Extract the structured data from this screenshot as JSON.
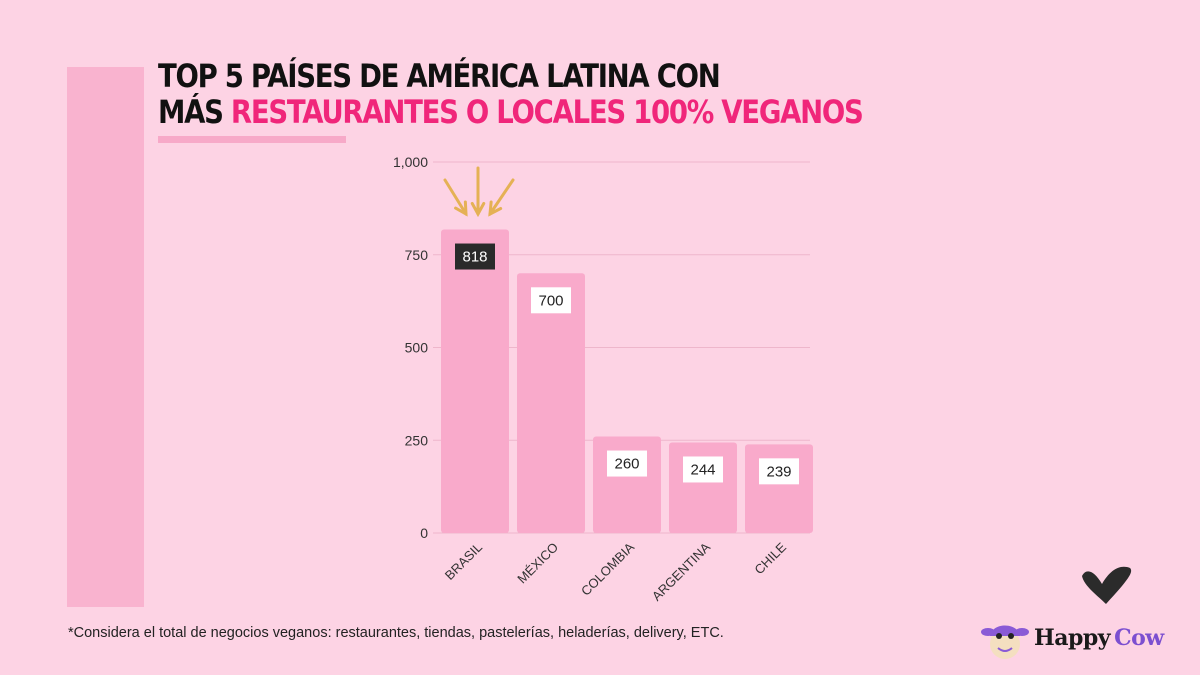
{
  "title": {
    "line1": "TOP 5 PAÍSES DE AMÉRICA LATINA CON",
    "line2_black": "MÁS ",
    "line2_pink": "RESTAURANTES O LOCALES 100% VEGANOS"
  },
  "footnote": "*Considera el total de negocios veganos: restaurantes, tiendas, pastelerías, heladerías, delivery, ETC.",
  "logo": {
    "happy": "Happy",
    "cow": "Cow"
  },
  "colors": {
    "background": "#fdd3e4",
    "bar": "#f9aacb",
    "accent": "#f0267a",
    "arrow": "#e5b155",
    "highlight_label": "#2a2a2a"
  },
  "chart_data": {
    "type": "bar",
    "categories": [
      "BRASIL",
      "MÉXICO",
      "COLOMBIA",
      "ARGENTINA",
      "CHILE"
    ],
    "values": [
      818,
      700,
      260,
      244,
      239
    ],
    "value_labels": [
      "818",
      "700",
      "260",
      "244",
      "239"
    ],
    "highlighted": "BRASIL",
    "ylim": [
      0,
      1000
    ],
    "yticks": [
      0,
      250,
      500,
      750,
      1000
    ],
    "ytick_labels": [
      "0",
      "250",
      "500",
      "750",
      "1,000"
    ],
    "grid": true,
    "xlabel": "",
    "ylabel": ""
  }
}
